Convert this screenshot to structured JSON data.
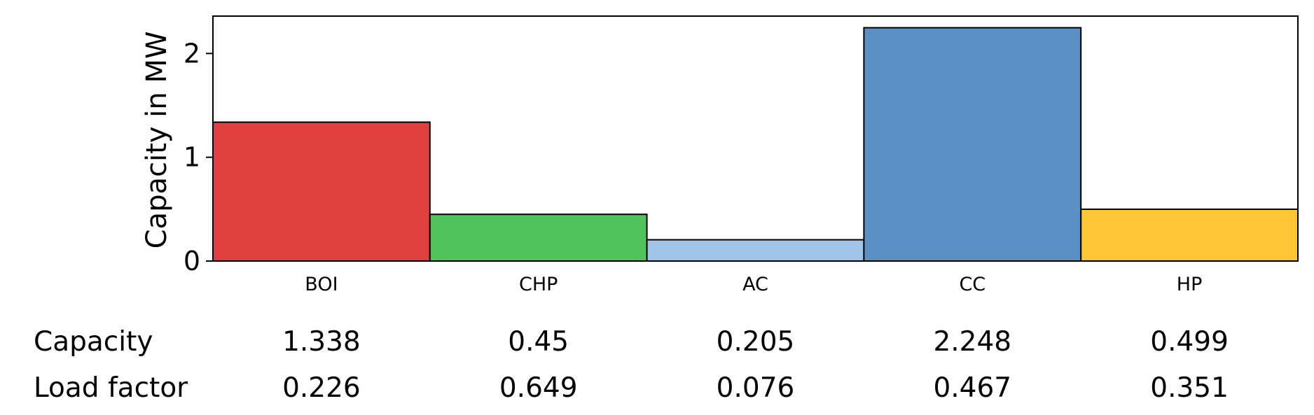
{
  "chart_data": {
    "type": "bar",
    "categories": [
      "BOI",
      "CHP",
      "AC",
      "CC",
      "HP"
    ],
    "values": [
      1.338,
      0.45,
      0.205,
      2.248,
      0.499
    ],
    "colors": [
      "#e04040",
      "#50c35a",
      "#a0c4e8",
      "#5b90c4",
      "#ffc535"
    ],
    "title": "",
    "xlabel": "",
    "ylabel": "Capacity in MW",
    "ylim": [
      0,
      2.36
    ],
    "yticks": [
      0,
      1,
      2
    ],
    "grid": false,
    "table": {
      "rows": [
        {
          "label": "Capacity",
          "values": [
            "1.338",
            "0.45",
            "0.205",
            "2.248",
            "0.499"
          ]
        },
        {
          "label": "Load factor",
          "values": [
            "0.226",
            "0.649",
            "0.076",
            "0.467",
            "0.351"
          ]
        }
      ]
    }
  }
}
